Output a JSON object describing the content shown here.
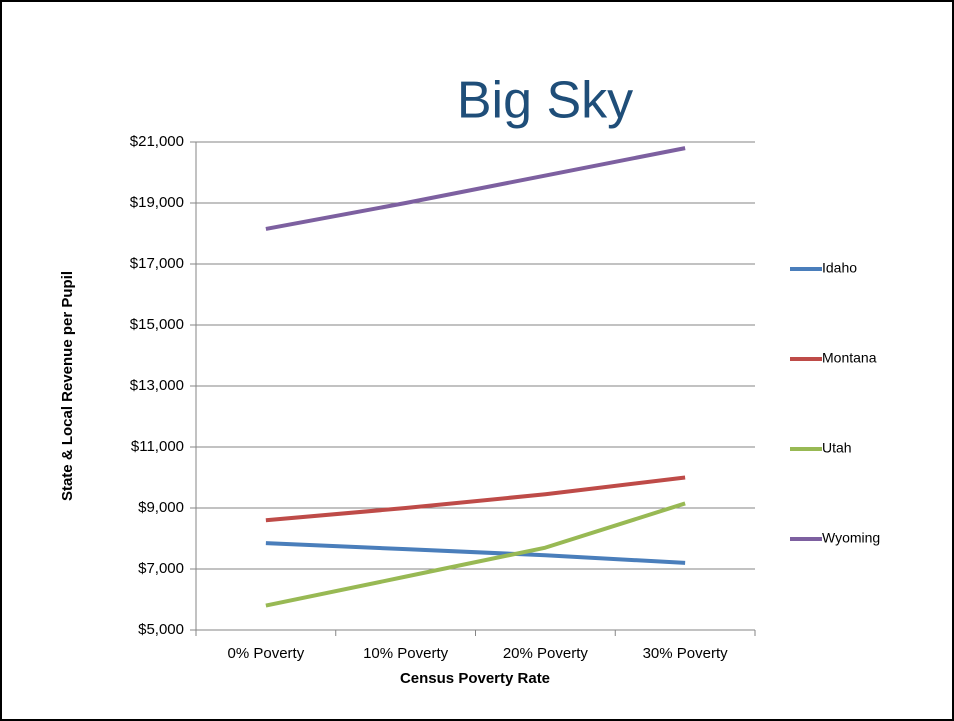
{
  "chart_data": {
    "type": "line",
    "title": "Big Sky",
    "xlabel": "Census Poverty Rate",
    "ylabel": "State & Local Revenue per Pupil",
    "categories": [
      "0% Poverty",
      "10% Poverty",
      "20% Poverty",
      "30% Poverty"
    ],
    "series": [
      {
        "name": "Idaho",
        "color": "#4a7ebb",
        "values": [
          7850,
          7650,
          7450,
          7200
        ]
      },
      {
        "name": "Montana",
        "color": "#be4b48",
        "values": [
          8600,
          9000,
          9450,
          10000
        ]
      },
      {
        "name": "Utah",
        "color": "#98b954",
        "values": [
          5800,
          6750,
          7700,
          9150
        ]
      },
      {
        "name": "Wyoming",
        "color": "#7d60a0",
        "values": [
          18150,
          19000,
          19900,
          20800
        ]
      }
    ],
    "ylim": [
      5000,
      21000
    ],
    "yticks": [
      {
        "value": 5000,
        "label": "$5,000"
      },
      {
        "value": 7000,
        "label": "$7,000"
      },
      {
        "value": 9000,
        "label": "$9,000"
      },
      {
        "value": 11000,
        "label": "$11,000"
      },
      {
        "value": 13000,
        "label": "$13,000"
      },
      {
        "value": 15000,
        "label": "$15,000"
      },
      {
        "value": 17000,
        "label": "$17,000"
      },
      {
        "value": 19000,
        "label": "$19,000"
      },
      {
        "value": 21000,
        "label": "$21,000"
      }
    ],
    "grid": true,
    "legend": "right"
  }
}
